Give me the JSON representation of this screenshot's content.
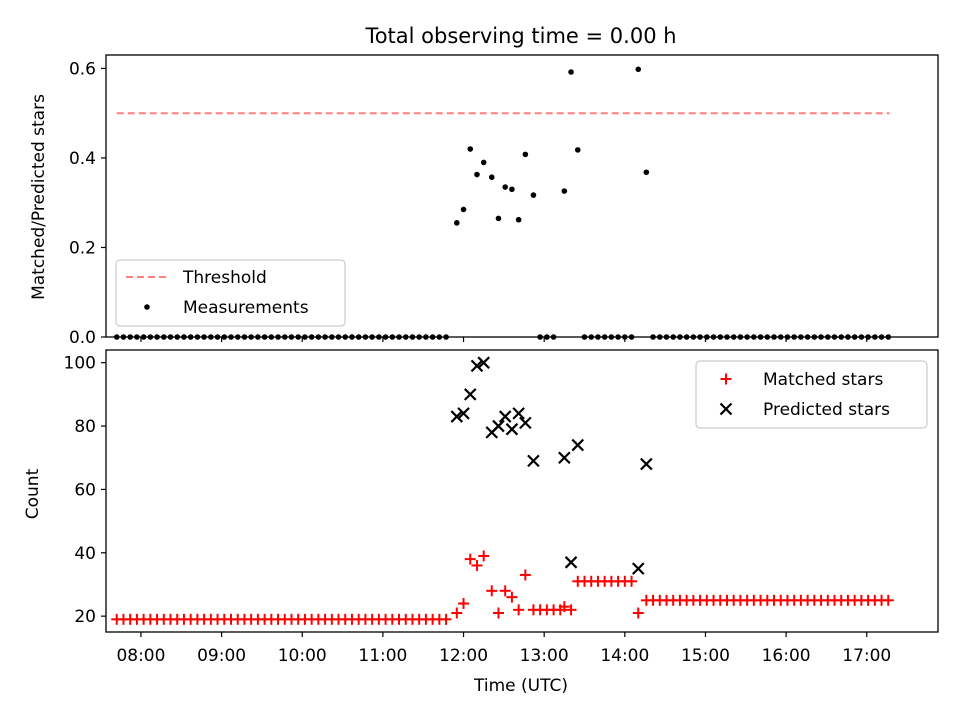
{
  "title": "Total observing time = 0.00 h",
  "colors": {
    "threshold": "#ff7f7f",
    "measurement": "#000000",
    "matched": "#ff0000",
    "predicted": "#000000"
  },
  "chart_data": [
    {
      "type": "scatter",
      "title": "Total observing time = 0.00 h",
      "ylabel": "Matched/Predicted stars",
      "xlabel": "",
      "xlim": [
        "07:34",
        "17:53"
      ],
      "ylim": [
        0,
        0.63
      ],
      "yticks": [
        "0.0",
        "0.2",
        "0.4",
        "0.6"
      ],
      "ytick_values": [
        0,
        0.2,
        0.4,
        0.6
      ],
      "legend": {
        "placement": "lower-left",
        "entries": [
          "Threshold",
          "Measurements"
        ]
      },
      "grid": false,
      "threshold": {
        "name": "Threshold",
        "y": 0.5,
        "x_start": "07:42",
        "x_end": "17:17"
      },
      "series": [
        {
          "name": "Measurements",
          "points": [
            [
              "07:42",
              0
            ],
            [
              "07:47",
              0
            ],
            [
              "07:52",
              0
            ],
            [
              "07:57",
              0
            ],
            [
              "08:02",
              0
            ],
            [
              "08:07",
              0
            ],
            [
              "08:12",
              0
            ],
            [
              "08:17",
              0
            ],
            [
              "08:22",
              0
            ],
            [
              "08:27",
              0
            ],
            [
              "08:32",
              0
            ],
            [
              "08:37",
              0
            ],
            [
              "08:42",
              0
            ],
            [
              "08:47",
              0
            ],
            [
              "08:52",
              0
            ],
            [
              "08:57",
              0
            ],
            [
              "09:02",
              0
            ],
            [
              "09:07",
              0
            ],
            [
              "09:12",
              0
            ],
            [
              "09:17",
              0
            ],
            [
              "09:22",
              0
            ],
            [
              "09:27",
              0
            ],
            [
              "09:32",
              0
            ],
            [
              "09:37",
              0
            ],
            [
              "09:42",
              0
            ],
            [
              "09:47",
              0
            ],
            [
              "09:52",
              0
            ],
            [
              "09:57",
              0
            ],
            [
              "10:02",
              0
            ],
            [
              "10:07",
              0
            ],
            [
              "10:12",
              0
            ],
            [
              "10:17",
              0
            ],
            [
              "10:22",
              0
            ],
            [
              "10:27",
              0
            ],
            [
              "10:32",
              0
            ],
            [
              "10:37",
              0
            ],
            [
              "10:42",
              0
            ],
            [
              "10:47",
              0
            ],
            [
              "10:52",
              0
            ],
            [
              "10:57",
              0
            ],
            [
              "11:02",
              0
            ],
            [
              "11:07",
              0
            ],
            [
              "11:12",
              0
            ],
            [
              "11:17",
              0
            ],
            [
              "11:22",
              0
            ],
            [
              "11:27",
              0
            ],
            [
              "11:32",
              0
            ],
            [
              "11:37",
              0
            ],
            [
              "11:42",
              0
            ],
            [
              "11:47",
              0
            ],
            [
              "11:55",
              0.255
            ],
            [
              "12:00",
              0.285
            ],
            [
              "12:05",
              0.42
            ],
            [
              "12:10",
              0.363
            ],
            [
              "12:15",
              0.39
            ],
            [
              "12:21",
              0.357
            ],
            [
              "12:26",
              0.265
            ],
            [
              "12:31",
              0.335
            ],
            [
              "12:36",
              0.33
            ],
            [
              "12:41",
              0.262
            ],
            [
              "12:46",
              0.408
            ],
            [
              "12:52",
              0.317
            ],
            [
              "12:57",
              0
            ],
            [
              "13:02",
              0
            ],
            [
              "13:07",
              0
            ],
            [
              "13:15",
              0.326
            ],
            [
              "13:20",
              0.592
            ],
            [
              "13:25",
              0.418
            ],
            [
              "13:30",
              0
            ],
            [
              "13:35",
              0
            ],
            [
              "13:40",
              0
            ],
            [
              "13:45",
              0
            ],
            [
              "13:50",
              0
            ],
            [
              "13:55",
              0
            ],
            [
              "14:00",
              0
            ],
            [
              "14:05",
              0
            ],
            [
              "14:10",
              0.598
            ],
            [
              "14:16",
              0.368
            ],
            [
              "14:21",
              0
            ],
            [
              "14:26",
              0
            ],
            [
              "14:31",
              0
            ],
            [
              "14:36",
              0
            ],
            [
              "14:41",
              0
            ],
            [
              "14:46",
              0
            ],
            [
              "14:51",
              0
            ],
            [
              "14:56",
              0
            ],
            [
              "15:01",
              0
            ],
            [
              "15:06",
              0
            ],
            [
              "15:11",
              0
            ],
            [
              "15:16",
              0
            ],
            [
              "15:21",
              0
            ],
            [
              "15:26",
              0
            ],
            [
              "15:31",
              0
            ],
            [
              "15:36",
              0
            ],
            [
              "15:41",
              0
            ],
            [
              "15:46",
              0
            ],
            [
              "15:51",
              0
            ],
            [
              "15:56",
              0
            ],
            [
              "16:01",
              0
            ],
            [
              "16:06",
              0
            ],
            [
              "16:11",
              0
            ],
            [
              "16:16",
              0
            ],
            [
              "16:21",
              0
            ],
            [
              "16:26",
              0
            ],
            [
              "16:31",
              0
            ],
            [
              "16:36",
              0
            ],
            [
              "16:41",
              0
            ],
            [
              "16:46",
              0
            ],
            [
              "16:51",
              0
            ],
            [
              "16:56",
              0
            ],
            [
              "17:01",
              0
            ],
            [
              "17:06",
              0
            ],
            [
              "17:11",
              0
            ],
            [
              "17:16",
              0
            ]
          ]
        }
      ]
    },
    {
      "type": "scatter",
      "title": "",
      "ylabel": "Count",
      "xlabel": "Time (UTC)",
      "xlim": [
        "07:34",
        "17:53"
      ],
      "ylim": [
        15,
        104
      ],
      "yticks": [
        "20",
        "40",
        "60",
        "80",
        "100"
      ],
      "ytick_values": [
        20,
        40,
        60,
        80,
        100
      ],
      "xticks": [
        "08:00",
        "09:00",
        "10:00",
        "11:00",
        "12:00",
        "13:00",
        "14:00",
        "15:00",
        "16:00",
        "17:00"
      ],
      "legend": {
        "placement": "top-right",
        "entries": [
          "Matched stars",
          "Predicted stars"
        ]
      },
      "grid": false,
      "series": [
        {
          "name": "Matched stars",
          "marker": "+",
          "points": [
            [
              "07:42",
              19
            ],
            [
              "07:47",
              19
            ],
            [
              "07:52",
              19
            ],
            [
              "07:57",
              19
            ],
            [
              "08:02",
              19
            ],
            [
              "08:07",
              19
            ],
            [
              "08:12",
              19
            ],
            [
              "08:17",
              19
            ],
            [
              "08:22",
              19
            ],
            [
              "08:27",
              19
            ],
            [
              "08:32",
              19
            ],
            [
              "08:37",
              19
            ],
            [
              "08:42",
              19
            ],
            [
              "08:47",
              19
            ],
            [
              "08:52",
              19
            ],
            [
              "08:57",
              19
            ],
            [
              "09:02",
              19
            ],
            [
              "09:07",
              19
            ],
            [
              "09:12",
              19
            ],
            [
              "09:17",
              19
            ],
            [
              "09:22",
              19
            ],
            [
              "09:27",
              19
            ],
            [
              "09:32",
              19
            ],
            [
              "09:37",
              19
            ],
            [
              "09:42",
              19
            ],
            [
              "09:47",
              19
            ],
            [
              "09:52",
              19
            ],
            [
              "09:57",
              19
            ],
            [
              "10:02",
              19
            ],
            [
              "10:07",
              19
            ],
            [
              "10:12",
              19
            ],
            [
              "10:17",
              19
            ],
            [
              "10:22",
              19
            ],
            [
              "10:27",
              19
            ],
            [
              "10:32",
              19
            ],
            [
              "10:37",
              19
            ],
            [
              "10:42",
              19
            ],
            [
              "10:47",
              19
            ],
            [
              "10:52",
              19
            ],
            [
              "10:57",
              19
            ],
            [
              "11:02",
              19
            ],
            [
              "11:07",
              19
            ],
            [
              "11:12",
              19
            ],
            [
              "11:17",
              19
            ],
            [
              "11:22",
              19
            ],
            [
              "11:27",
              19
            ],
            [
              "11:32",
              19
            ],
            [
              "11:37",
              19
            ],
            [
              "11:42",
              19
            ],
            [
              "11:47",
              19
            ],
            [
              "11:55",
              21
            ],
            [
              "12:00",
              24
            ],
            [
              "12:05",
              38
            ],
            [
              "12:10",
              36
            ],
            [
              "12:15",
              39
            ],
            [
              "12:21",
              28
            ],
            [
              "12:26",
              21
            ],
            [
              "12:31",
              28
            ],
            [
              "12:36",
              26
            ],
            [
              "12:41",
              22
            ],
            [
              "12:46",
              33
            ],
            [
              "12:52",
              22
            ],
            [
              "12:57",
              22
            ],
            [
              "13:02",
              22
            ],
            [
              "13:07",
              22
            ],
            [
              "13:12",
              22
            ],
            [
              "13:15",
              23
            ],
            [
              "13:20",
              22
            ],
            [
              "13:25",
              31
            ],
            [
              "13:30",
              31
            ],
            [
              "13:35",
              31
            ],
            [
              "13:40",
              31
            ],
            [
              "13:45",
              31
            ],
            [
              "13:50",
              31
            ],
            [
              "13:55",
              31
            ],
            [
              "14:00",
              31
            ],
            [
              "14:05",
              31
            ],
            [
              "14:10",
              21
            ],
            [
              "14:16",
              25
            ],
            [
              "14:21",
              25
            ],
            [
              "14:26",
              25
            ],
            [
              "14:31",
              25
            ],
            [
              "14:36",
              25
            ],
            [
              "14:41",
              25
            ],
            [
              "14:46",
              25
            ],
            [
              "14:51",
              25
            ],
            [
              "14:56",
              25
            ],
            [
              "15:01",
              25
            ],
            [
              "15:06",
              25
            ],
            [
              "15:11",
              25
            ],
            [
              "15:16",
              25
            ],
            [
              "15:21",
              25
            ],
            [
              "15:26",
              25
            ],
            [
              "15:31",
              25
            ],
            [
              "15:36",
              25
            ],
            [
              "15:41",
              25
            ],
            [
              "15:46",
              25
            ],
            [
              "15:51",
              25
            ],
            [
              "15:56",
              25
            ],
            [
              "16:01",
              25
            ],
            [
              "16:06",
              25
            ],
            [
              "16:11",
              25
            ],
            [
              "16:16",
              25
            ],
            [
              "16:21",
              25
            ],
            [
              "16:26",
              25
            ],
            [
              "16:31",
              25
            ],
            [
              "16:36",
              25
            ],
            [
              "16:41",
              25
            ],
            [
              "16:46",
              25
            ],
            [
              "16:51",
              25
            ],
            [
              "16:56",
              25
            ],
            [
              "17:01",
              25
            ],
            [
              "17:06",
              25
            ],
            [
              "17:11",
              25
            ],
            [
              "17:16",
              25
            ]
          ]
        },
        {
          "name": "Predicted stars",
          "marker": "x",
          "points": [
            [
              "11:55",
              83
            ],
            [
              "12:00",
              84
            ],
            [
              "12:05",
              90
            ],
            [
              "12:10",
              99
            ],
            [
              "12:15",
              100
            ],
            [
              "12:21",
              78
            ],
            [
              "12:26",
              80
            ],
            [
              "12:31",
              83
            ],
            [
              "12:36",
              79
            ],
            [
              "12:41",
              84
            ],
            [
              "12:46",
              81
            ],
            [
              "12:52",
              69
            ],
            [
              "13:15",
              70
            ],
            [
              "13:20",
              37
            ],
            [
              "13:25",
              74
            ],
            [
              "14:10",
              35
            ],
            [
              "14:16",
              68
            ]
          ]
        }
      ]
    }
  ]
}
